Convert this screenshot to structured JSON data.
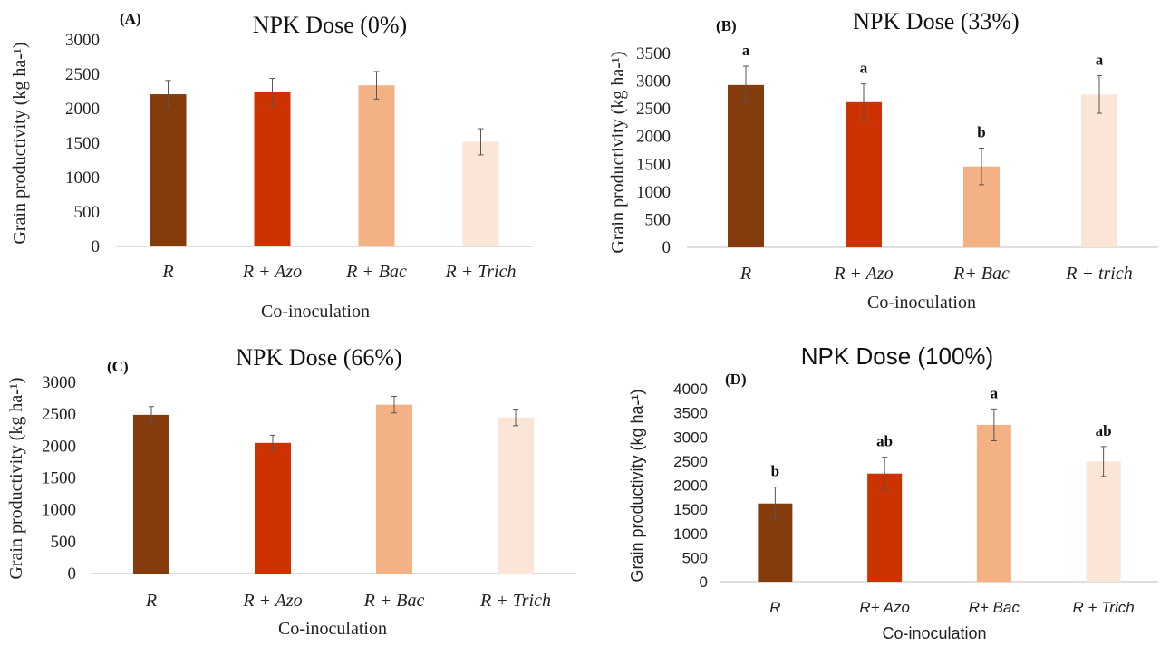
{
  "colors": [
    "#843c0c",
    "#cc3300",
    "#f4b183",
    "#fbe5d6"
  ],
  "chart_data": [
    {
      "type": "bar",
      "panel": "(A)",
      "title": "NPK Dose (0%)",
      "xlabel": "Co-inoculation",
      "ylabel": "Grain productivity (kg ha-¹)",
      "categories": [
        "R",
        "R + Azo",
        "R + Bac",
        "R + Trich"
      ],
      "values": [
        2210,
        2240,
        2340,
        1520
      ],
      "errors": [
        200,
        200,
        200,
        190
      ],
      "letters": [
        "",
        "",
        "",
        ""
      ],
      "ylim": [
        0,
        3000
      ],
      "yticks": [
        0,
        500,
        1000,
        1500,
        2000,
        2500,
        3000
      ]
    },
    {
      "type": "bar",
      "panel": "(B)",
      "title": "NPK Dose (33%)",
      "xlabel": "Co-inoculation",
      "ylabel": "Grain productivity (kg ha-¹)",
      "categories": [
        "R",
        "R + Azo",
        "R+ Bac",
        "R + trich"
      ],
      "values": [
        2930,
        2620,
        1460,
        2760
      ],
      "errors": [
        340,
        330,
        330,
        340
      ],
      "letters": [
        "a",
        "a",
        "b",
        "a"
      ],
      "ylim": [
        0,
        3500
      ],
      "yticks": [
        0,
        500,
        1000,
        1500,
        2000,
        2500,
        3000,
        3500
      ]
    },
    {
      "type": "bar",
      "panel": "(C)",
      "title": "NPK Dose (66%)",
      "xlabel": "Co-inoculation",
      "ylabel": "Grain productivity (kg ha-¹)",
      "categories": [
        "R",
        "R + Azo",
        "R + Bac",
        "R + Trich"
      ],
      "values": [
        2490,
        2050,
        2650,
        2450
      ],
      "errors": [
        130,
        120,
        130,
        130
      ],
      "letters": [
        "",
        "",
        "",
        ""
      ],
      "ylim": [
        0,
        3000
      ],
      "yticks": [
        0,
        500,
        1000,
        1500,
        2000,
        2500,
        3000
      ]
    },
    {
      "type": "bar",
      "panel": "(D)",
      "title": "NPK Dose (100%)",
      "xlabel": "Co-inoculation",
      "ylabel": "Grain productivity (kg ha-¹)",
      "categories": [
        "R",
        "R+ Azo",
        "R+ Bac",
        "R + Trich"
      ],
      "values": [
        1620,
        2240,
        3250,
        2490
      ],
      "errors": [
        340,
        340,
        330,
        310
      ],
      "letters": [
        "b",
        "ab",
        "a",
        "ab"
      ],
      "ylim": [
        0,
        4000
      ],
      "yticks": [
        0,
        500,
        1000,
        1500,
        2000,
        2500,
        3000,
        3500,
        4000
      ]
    }
  ]
}
